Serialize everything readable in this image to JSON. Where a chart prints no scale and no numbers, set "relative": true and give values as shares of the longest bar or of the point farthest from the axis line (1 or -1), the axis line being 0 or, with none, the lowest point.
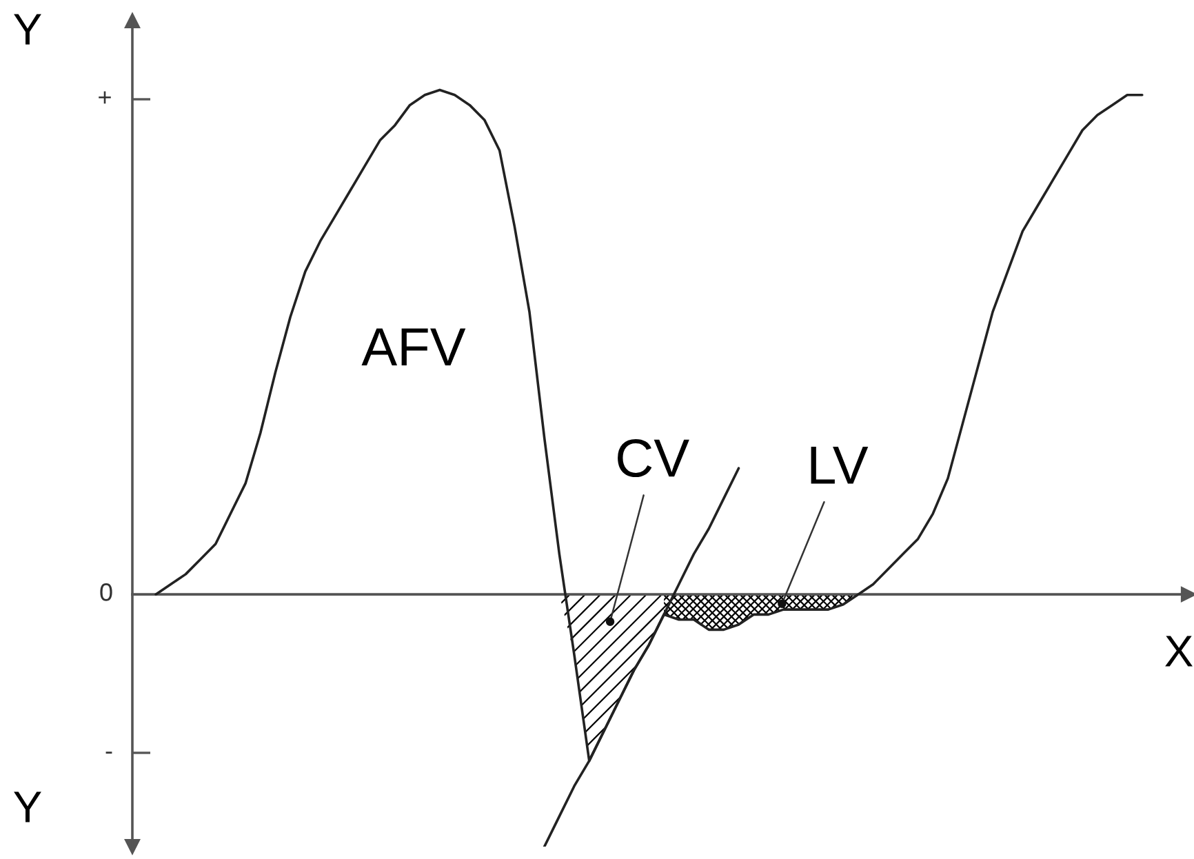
{
  "chart_data": {
    "type": "line",
    "relative": true,
    "xlabel": "X",
    "ylabel": "Y",
    "annotations": [
      "AFV",
      "Y",
      "+",
      "0",
      "-"
    ],
    "categories": [
      null,
      null,
      null,
      null,
      null,
      null,
      null,
      null,
      null,
      null,
      null,
      null,
      null,
      null,
      null,
      null,
      null,
      null,
      null,
      null,
      null,
      null,
      null,
      null,
      null,
      null,
      null,
      null,
      null,
      null,
      null,
      null,
      null,
      null,
      null,
      null,
      null,
      null,
      null,
      null,
      null,
      null,
      null,
      null,
      null,
      null,
      null,
      null,
      null,
      null,
      null,
      null,
      null,
      null,
      null,
      null,
      null,
      null,
      null,
      null,
      null,
      null,
      null,
      null,
      null,
      null,
      null
    ],
    "series": [
      {
        "color": "#222222",
        "values": [
          0,
          0.02,
          0.04,
          0.07,
          0.1,
          0.16,
          0.22,
          0.32,
          0.44,
          0.55,
          0.64,
          0.7,
          0.75,
          0.8,
          0.85,
          0.9,
          0.93,
          0.97,
          0.99,
          1,
          0.99,
          0.97,
          0.94,
          0.88,
          0.73,
          0.56,
          0.31,
          0.08,
          -0.12,
          -0.33,
          -0.27,
          -0.21,
          -0.15,
          -0.1,
          -0.04,
          -0.05,
          -0.05,
          -0.07,
          -0.07,
          -0.06,
          -0.04,
          -0.04,
          -0.03,
          -0.03,
          -0.03,
          -0.03,
          -0.02,
          0,
          0.02,
          0.05,
          0.08,
          0.11,
          0.16,
          0.23,
          0.34,
          0.45,
          0.56,
          0.64,
          0.72,
          0.77,
          0.82,
          0.87,
          0.92,
          0.95,
          0.97,
          0.99,
          0.99
        ]
      },
      {
        "color": "#222222",
        "values": [
          null,
          null,
          null,
          null,
          null,
          null,
          null,
          null,
          null,
          null,
          null,
          null,
          null,
          null,
          null,
          null,
          null,
          null,
          null,
          null,
          null,
          null,
          null,
          null,
          null,
          null,
          -0.5,
          -0.44,
          -0.38,
          -0.33,
          -0.27,
          -0.21,
          -0.15,
          -0.1,
          -0.04,
          0.02,
          0.08,
          0.13,
          0.19,
          0.25,
          null,
          null,
          null,
          null,
          null,
          null,
          null,
          null,
          null,
          null,
          null,
          null,
          null,
          null,
          null,
          null,
          null,
          null,
          null,
          null,
          null,
          null,
          null,
          null,
          null,
          null,
          null
        ]
      },
      {
        "name": "CV",
        "type": "area",
        "color": "#000000",
        "values": [
          null,
          null,
          null,
          null,
          null,
          null,
          null,
          null,
          null,
          null,
          null,
          null,
          null,
          null,
          null,
          null,
          null,
          null,
          null,
          null,
          null,
          null,
          null,
          null,
          null,
          null,
          null,
          0,
          -0.12,
          -0.33,
          -0.27,
          -0.21,
          -0.15,
          -0.1,
          -0.04,
          null,
          null,
          null,
          null,
          null,
          null,
          null,
          null,
          null,
          null,
          null,
          null,
          null,
          null,
          null,
          null,
          null,
          null,
          null,
          null,
          null,
          null,
          null,
          null,
          null,
          null,
          null,
          null,
          null,
          null,
          null,
          null
        ]
      },
      {
        "name": "LV",
        "type": "area",
        "color": "#000000",
        "values": [
          null,
          null,
          null,
          null,
          null,
          null,
          null,
          null,
          null,
          null,
          null,
          null,
          null,
          null,
          null,
          null,
          null,
          null,
          null,
          null,
          null,
          null,
          null,
          null,
          null,
          null,
          null,
          null,
          null,
          null,
          null,
          null,
          null,
          null,
          -0.04,
          -0.05,
          -0.05,
          -0.07,
          -0.07,
          -0.06,
          -0.04,
          -0.04,
          -0.03,
          -0.03,
          -0.03,
          -0.03,
          -0.02,
          0,
          null,
          null,
          null,
          null,
          null,
          null,
          null,
          null,
          null,
          null,
          null,
          null,
          null,
          null,
          null,
          null,
          null,
          null,
          null
        ]
      }
    ]
  }
}
